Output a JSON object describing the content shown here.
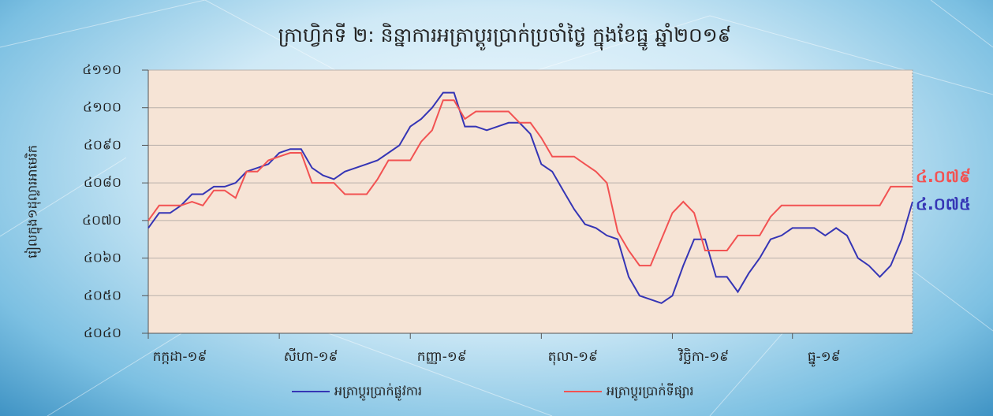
{
  "chart_data": {
    "type": "line",
    "title": "ក្រាហ្វិកទី ២: និន្នាការអត្រាប្តូរប្រាក់ប្រចាំថ្ងៃ ក្នុងខែធ្នូ ឆ្នាំ២០១៩",
    "y_label": "រៀលក្នុង១ដុល្លារអាមេរិក",
    "categories": [
      "កក្កដា-១៩",
      null,
      null,
      null,
      null,
      null,
      null,
      null,
      null,
      null,
      null,
      null,
      "សីហា-១៩",
      null,
      null,
      null,
      null,
      null,
      null,
      null,
      null,
      null,
      null,
      null,
      "កញ្ញា-១៩",
      null,
      null,
      null,
      null,
      null,
      null,
      null,
      null,
      null,
      null,
      null,
      "តុលា-១៩",
      null,
      null,
      null,
      null,
      null,
      null,
      null,
      null,
      null,
      null,
      null,
      "វិច្ឆិកា-១៩",
      null,
      null,
      null,
      null,
      null,
      null,
      null,
      null,
      null,
      null,
      "ធ្នូ-១៩",
      null,
      null,
      null,
      null,
      null,
      null,
      null,
      null,
      null,
      null,
      null
    ],
    "ylim": [
      4040,
      4110
    ],
    "yticks": [
      {
        "value": 4040,
        "label": "៤០៤០"
      },
      {
        "value": 4050,
        "label": "៤០៥០"
      },
      {
        "value": 4060,
        "label": "៤០៦០"
      },
      {
        "value": 4070,
        "label": "៤០៧០"
      },
      {
        "value": 4080,
        "label": "៤០៨០"
      },
      {
        "value": 4090,
        "label": "៤០៩០"
      },
      {
        "value": 4100,
        "label": "៤១០០"
      },
      {
        "value": 4110,
        "label": "៤១១០"
      }
    ],
    "grid": true,
    "series": [
      {
        "name": "អត្រាប្តូរប្រាក់ផ្លូវការ",
        "color": "#3535b5",
        "values": [
          4068,
          4072,
          4072,
          4074,
          4077,
          4077,
          4079,
          4079,
          4080,
          4083,
          4084,
          4085,
          4088,
          4089,
          4089,
          4084,
          4082,
          4081,
          4083,
          4084,
          4085,
          4086,
          4088,
          4090,
          4095,
          4097,
          4100,
          4104,
          4104,
          4095,
          4095,
          4094,
          4095,
          4096,
          4096,
          4093,
          4085,
          4083,
          4078,
          4073,
          4069,
          4068,
          4066,
          4065,
          4055,
          4050,
          4049,
          4048,
          4050,
          4058,
          4065,
          4065,
          4055,
          4055,
          4051,
          4056,
          4060,
          4065,
          4066,
          4068,
          4068,
          4068,
          4066,
          4068,
          4066,
          4060,
          4058,
          4055,
          4058,
          4065,
          4075
        ],
        "value_labels": [
          null,
          null,
          null,
          null,
          null,
          null,
          null,
          null,
          null,
          null,
          null,
          null,
          null,
          null,
          null,
          null,
          null,
          null,
          null,
          null,
          null,
          null,
          null,
          null,
          null,
          null,
          null,
          null,
          null,
          null,
          null,
          null,
          null,
          null,
          null,
          null,
          null,
          null,
          null,
          null,
          null,
          null,
          null,
          null,
          null,
          null,
          null,
          null,
          null,
          null,
          null,
          null,
          null,
          null,
          null,
          null,
          null,
          null,
          null,
          null,
          null,
          null,
          null,
          null,
          null,
          null,
          null,
          null,
          null,
          null,
          "៤.០៧៥"
        ]
      },
      {
        "name": "អត្រាប្តូរប្រាក់ទីផ្សារ",
        "color": "#f25252",
        "values": [
          4070,
          4074,
          4074,
          4074,
          4075,
          4074,
          4078,
          4078,
          4076,
          4083,
          4083,
          4086,
          4087,
          4088,
          4088,
          4080,
          4080,
          4080,
          4077,
          4077,
          4077,
          4081,
          4086,
          4086,
          4086,
          4091,
          4094,
          4102,
          4102,
          4097,
          4099,
          4099,
          4099,
          4099,
          4096,
          4096,
          4092,
          4087,
          4087,
          4087,
          4085,
          4083,
          4080,
          4067,
          4062,
          4058,
          4058,
          4065,
          4072,
          4075,
          4072,
          4062,
          4062,
          4062,
          4066,
          4066,
          4066,
          4071,
          4074,
          4074,
          4074,
          4074,
          4074,
          4074,
          4074,
          4074,
          4074,
          4074,
          4079,
          4079,
          4079
        ],
        "value_labels": [
          null,
          null,
          null,
          null,
          null,
          null,
          null,
          null,
          null,
          null,
          null,
          null,
          null,
          null,
          null,
          null,
          null,
          null,
          null,
          null,
          null,
          null,
          null,
          null,
          null,
          null,
          null,
          null,
          null,
          null,
          null,
          null,
          null,
          null,
          null,
          null,
          null,
          null,
          null,
          null,
          null,
          null,
          null,
          null,
          null,
          null,
          null,
          null,
          null,
          null,
          null,
          null,
          null,
          null,
          null,
          null,
          null,
          null,
          null,
          null,
          null,
          null,
          null,
          null,
          null,
          null,
          null,
          null,
          null,
          null,
          "៤.០៧៩"
        ]
      }
    ]
  }
}
